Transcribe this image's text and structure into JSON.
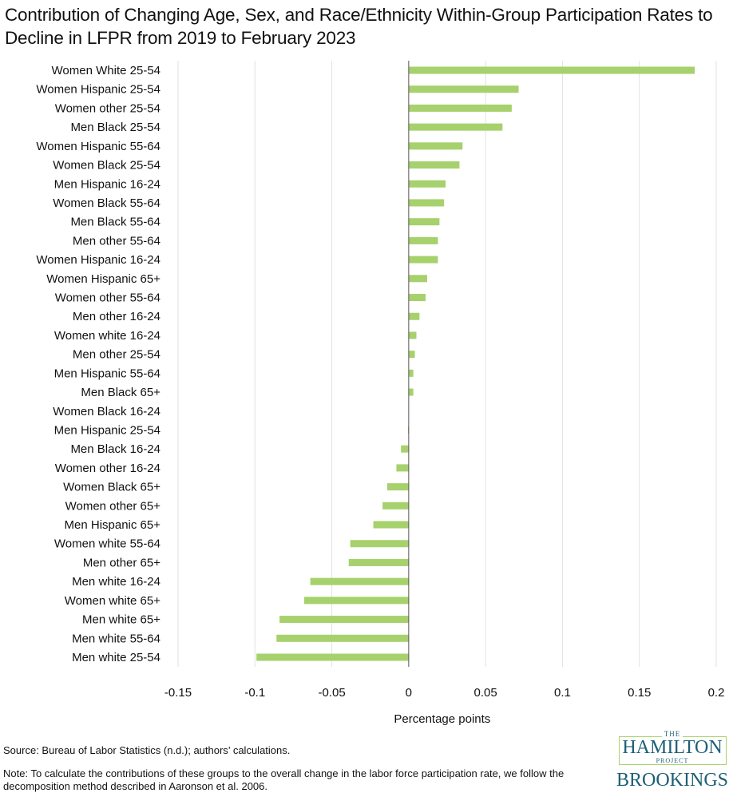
{
  "chart_data": {
    "type": "bar",
    "orientation": "horizontal",
    "title": "Contribution of Changing Age, Sex, and Race/Ethnicity Within-Group Participation Rates to Decline in LFPR from 2019 to February 2023",
    "xlabel": "Percentage points",
    "ylabel": "",
    "xlim": [
      -0.15,
      0.2
    ],
    "xticks": [
      -0.15,
      -0.1,
      -0.05,
      0,
      0.05,
      0.1,
      0.15,
      0.2
    ],
    "xtick_labels": [
      "-0.15",
      "-0.1",
      "-0.05",
      "0",
      "0.05",
      "0.1",
      "0.15",
      "0.2"
    ],
    "grid": "vertical",
    "bar_color": "#a6d16c",
    "categories": [
      "Women White 25-54",
      "Women Hispanic 25-54",
      "Women other 25-54",
      "Men Black 25-54",
      "Women Hispanic 55-64",
      "Women Black 25-54",
      "Men Hispanic 16-24",
      "Women Black 55-64",
      "Men Black 55-64",
      "Men other 55-64",
      "Women Hispanic 16-24",
      "Women Hispanic 65+",
      "Women other 55-64",
      "Men other 16-24",
      "Women white 16-24",
      "Men other 25-54",
      "Men Hispanic 55-64",
      "Men Black 65+",
      "Women Black 16-24",
      "Men Hispanic 25-54",
      "Men Black 16-24",
      "Women other 16-24",
      "Women Black 65+",
      "Women other 65+",
      "Men Hispanic 65+",
      "Women white 55-64",
      "Men other 65+",
      "Men white 16-24",
      "Women white 65+",
      "Men white 65+",
      "Men white 55-64",
      "Men white 25-54"
    ],
    "values": [
      0.186,
      0.0715,
      0.067,
      0.061,
      0.035,
      0.033,
      0.024,
      0.023,
      0.02,
      0.019,
      0.019,
      0.012,
      0.011,
      0.007,
      0.005,
      0.004,
      0.003,
      0.003,
      0,
      -0.0005,
      -0.005,
      -0.008,
      -0.014,
      -0.017,
      -0.023,
      -0.038,
      -0.039,
      -0.064,
      -0.068,
      -0.084,
      -0.086,
      -0.099
    ]
  },
  "footer": {
    "source": "Source: Bureau of Labor Statistics (n.d.); authors’ calculations.",
    "note": "Note: To calculate the contributions of these groups to the overall change in the labor force participation rate, we follow the decomposition method described in Aaronson et al. 2006."
  },
  "logo": {
    "the": "THE",
    "hamilton": "HAMILTON",
    "project": "PROJECT",
    "brookings": "BROOKINGS"
  }
}
